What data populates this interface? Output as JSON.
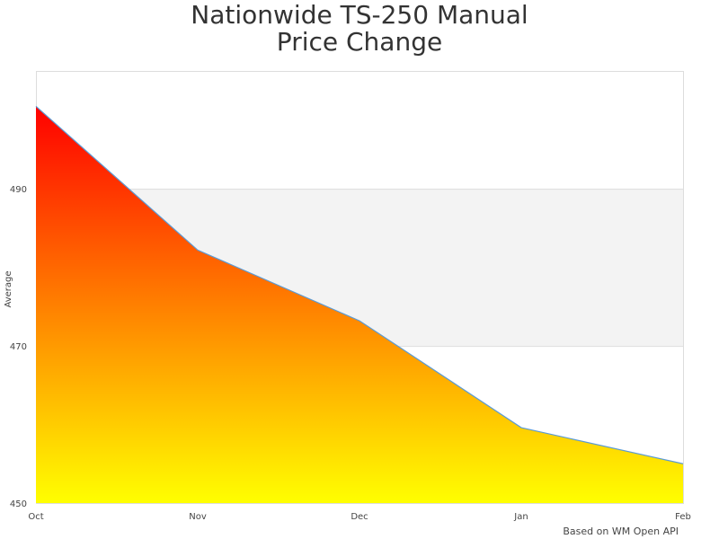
{
  "chart_data": {
    "type": "area",
    "title_lines": [
      "Nationwide TS-250 Manual",
      "Price Change"
    ],
    "xlabel": "",
    "ylabel": "Average",
    "categories": [
      "Oct",
      "Nov",
      "Dec",
      "Jan",
      "Feb"
    ],
    "series": [
      {
        "values": [
          500.5,
          482.2,
          473.2,
          459.6,
          455.0
        ]
      }
    ],
    "ylim": [
      450,
      505
    ],
    "yticks": [
      450,
      470,
      490
    ],
    "grid": true,
    "plot_bands": [
      {
        "from": 470,
        "to": 490,
        "color": "#f3f3f3"
      }
    ],
    "fill_gradient": {
      "top": "#ff0000",
      "bottom": "#ffff00"
    },
    "line_color": "#5b9bd5",
    "credit": "Based on WM Open API"
  }
}
